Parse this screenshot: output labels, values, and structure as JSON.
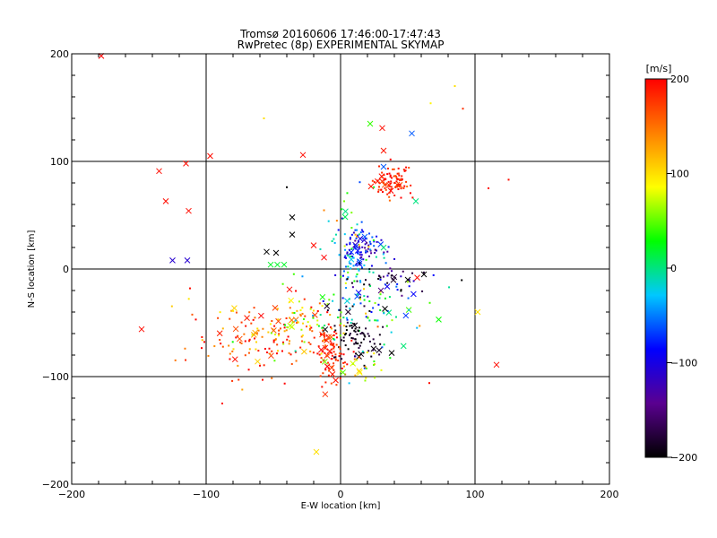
{
  "chart_data": {
    "type": "scatter",
    "title": "Tromsø 20160606 17:46:00-17:47:43",
    "subtitle": "RwPretec (8p) EXPERIMENTAL SKYMAP",
    "xlabel": "E-W location [km]",
    "ylabel": "N-S location [km]",
    "xlim": [
      -200,
      200
    ],
    "ylim": [
      -200,
      200
    ],
    "xticks": [
      -200,
      -100,
      0,
      100,
      200
    ],
    "yticks": [
      -200,
      -100,
      0,
      100,
      200
    ],
    "grid": true,
    "colorbar": {
      "label": "[m/s]",
      "range": [
        -200,
        200
      ],
      "ticks": [
        200,
        100,
        0,
        -100,
        -200
      ],
      "colormap": [
        "#000000",
        "#5a0090",
        "#0000ff",
        "#00c8ff",
        "#00ff00",
        "#ffff00",
        "#ff8000",
        "#ff0000"
      ]
    },
    "marker_types": [
      "dot",
      "x"
    ],
    "clusters": [
      {
        "cx": 40,
        "cy": 82,
        "sx": 6,
        "sy": 8,
        "n": 90,
        "v": 185,
        "vs": 15
      },
      {
        "cx": 18,
        "cy": 20,
        "sx": 8,
        "sy": 8,
        "n": 80,
        "v": -95,
        "vs": 25
      },
      {
        "cx": 15,
        "cy": 5,
        "sx": 8,
        "sy": 10,
        "n": 30,
        "v": -40,
        "vs": 40
      },
      {
        "cx": 5,
        "cy": 35,
        "sx": 10,
        "sy": 20,
        "n": 40,
        "v": 20,
        "vs": 80
      },
      {
        "cx": 20,
        "cy": -35,
        "sx": 25,
        "sy": 15,
        "n": 90,
        "v": 0,
        "vs": 60
      },
      {
        "cx": 10,
        "cy": -60,
        "sx": 10,
        "sy": 12,
        "n": 80,
        "v": -190,
        "vs": 10
      },
      {
        "cx": -8,
        "cy": -75,
        "sx": 6,
        "sy": 15,
        "n": 90,
        "v": 185,
        "vs": 15
      },
      {
        "cx": -60,
        "cy": -65,
        "sx": 25,
        "sy": 18,
        "n": 130,
        "v": 160,
        "vs": 40
      },
      {
        "cx": -30,
        "cy": -50,
        "sx": 15,
        "sy": 12,
        "n": 60,
        "v": 100,
        "vs": 50
      },
      {
        "cx": 40,
        "cy": -10,
        "sx": 15,
        "sy": 6,
        "n": 40,
        "v": -150,
        "vs": 60
      },
      {
        "cx": 15,
        "cy": -90,
        "sx": 10,
        "sy": 8,
        "n": 30,
        "v": 80,
        "vs": 80
      }
    ],
    "points": [
      {
        "x": -178,
        "y": 198,
        "v": 200,
        "m": "x"
      },
      {
        "x": -97,
        "y": 105,
        "v": 195,
        "m": "x"
      },
      {
        "x": -135,
        "y": 91,
        "v": 195,
        "m": "x"
      },
      {
        "x": -115,
        "y": 98,
        "v": 195,
        "m": "x"
      },
      {
        "x": -130,
        "y": 63,
        "v": 195,
        "m": "x"
      },
      {
        "x": -113,
        "y": 54,
        "v": 195,
        "m": "x"
      },
      {
        "x": -125,
        "y": 8,
        "v": -110,
        "m": "x"
      },
      {
        "x": -114,
        "y": 8,
        "v": -110,
        "m": "x"
      },
      {
        "x": -148,
        "y": -56,
        "v": 195,
        "m": "x"
      },
      {
        "x": -28,
        "y": 106,
        "v": 195,
        "m": "x"
      },
      {
        "x": 31,
        "y": 131,
        "v": 195,
        "m": "x"
      },
      {
        "x": 22,
        "y": 135,
        "v": 40,
        "m": "x"
      },
      {
        "x": 53,
        "y": 126,
        "v": -60,
        "m": "x"
      },
      {
        "x": 32,
        "y": 110,
        "v": 190,
        "m": "x"
      },
      {
        "x": 67,
        "y": 154,
        "v": 90,
        "m": "dot"
      },
      {
        "x": 85,
        "y": 170,
        "v": 100,
        "m": "dot"
      },
      {
        "x": 91,
        "y": 149,
        "v": 180,
        "m": "dot"
      },
      {
        "x": -57,
        "y": 140,
        "v": 100,
        "m": "dot"
      },
      {
        "x": 110,
        "y": 75,
        "v": 195,
        "m": "dot"
      },
      {
        "x": 125,
        "y": 83,
        "v": 195,
        "m": "dot"
      },
      {
        "x": -55,
        "y": 16,
        "v": -200,
        "m": "x"
      },
      {
        "x": -48,
        "y": 15,
        "v": -200,
        "m": "x"
      },
      {
        "x": -36,
        "y": 48,
        "v": -200,
        "m": "x"
      },
      {
        "x": -36,
        "y": 32,
        "v": -200,
        "m": "x"
      },
      {
        "x": -40,
        "y": 76,
        "v": -200,
        "m": "dot"
      },
      {
        "x": -52,
        "y": 4,
        "v": 20,
        "m": "x"
      },
      {
        "x": -47,
        "y": 4,
        "v": 20,
        "m": "x"
      },
      {
        "x": -42,
        "y": 4,
        "v": 20,
        "m": "x"
      },
      {
        "x": -38,
        "y": -19,
        "v": 195,
        "m": "x"
      },
      {
        "x": -20,
        "y": 22,
        "v": 195,
        "m": "x"
      },
      {
        "x": 73,
        "y": -47,
        "v": 30,
        "m": "x"
      },
      {
        "x": 102,
        "y": -40,
        "v": 100,
        "m": "x"
      },
      {
        "x": 116,
        "y": -89,
        "v": 195,
        "m": "x"
      },
      {
        "x": -18,
        "y": -170,
        "v": 100,
        "m": "x"
      },
      {
        "x": -112,
        "y": -18,
        "v": 195,
        "m": "dot"
      },
      {
        "x": -88,
        "y": -125,
        "v": 195,
        "m": "dot"
      },
      {
        "x": -58,
        "y": -103,
        "v": 195,
        "m": "dot"
      },
      {
        "x": 66,
        "y": -106,
        "v": 195,
        "m": "dot"
      },
      {
        "x": 38,
        "y": -78,
        "v": -200,
        "m": "x"
      },
      {
        "x": 33,
        "y": -37,
        "v": -200,
        "m": "x"
      },
      {
        "x": 62,
        "y": -5,
        "v": -200,
        "m": "x"
      },
      {
        "x": 50,
        "y": -10,
        "v": -200,
        "m": "x"
      },
      {
        "x": 57,
        "y": -8,
        "v": 195,
        "m": "x"
      },
      {
        "x": 30,
        "y": -20,
        "v": -150,
        "m": "x"
      },
      {
        "x": 18,
        "y": 30,
        "v": -60,
        "m": "x"
      },
      {
        "x": 32,
        "y": 95,
        "v": -60,
        "m": "x"
      },
      {
        "x": 56,
        "y": 63,
        "v": 0,
        "m": "x"
      }
    ]
  }
}
